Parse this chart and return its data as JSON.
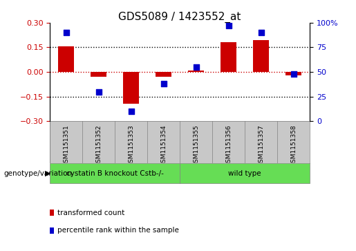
{
  "title": "GDS5089 / 1423552_at",
  "samples": [
    "GSM1151351",
    "GSM1151352",
    "GSM1151353",
    "GSM1151354",
    "GSM1151355",
    "GSM1151356",
    "GSM1151357",
    "GSM1151358"
  ],
  "red_bars": [
    0.155,
    -0.028,
    -0.195,
    -0.03,
    0.01,
    0.18,
    0.195,
    -0.02
  ],
  "blue_dots": [
    90,
    30,
    10,
    38,
    55,
    97,
    90,
    48
  ],
  "ylim_left": [
    -0.3,
    0.3
  ],
  "ylim_right": [
    0,
    100
  ],
  "yticks_left": [
    -0.3,
    -0.15,
    0,
    0.15,
    0.3
  ],
  "yticks_right": [
    0,
    25,
    50,
    75,
    100
  ],
  "group1_label": "cystatin B knockout Cstb-/-",
  "group2_label": "wild type",
  "group_label_x": "genotype/variation",
  "bar_color": "#CC0000",
  "dot_color": "#0000CC",
  "bar_width": 0.5,
  "dot_size": 30,
  "bg_color": "#FFFFFF",
  "sample_panel_color": "#C8C8C8",
  "group_panel_color": "#66DD55",
  "tick_color_left": "#CC0000",
  "tick_color_right": "#0000CC",
  "legend_red": "transformed count",
  "legend_blue": "percentile rank within the sample",
  "title_fontsize": 11,
  "tick_fontsize": 8,
  "zero_line_color": "#CC0000",
  "dotted_line_color": "#000000"
}
